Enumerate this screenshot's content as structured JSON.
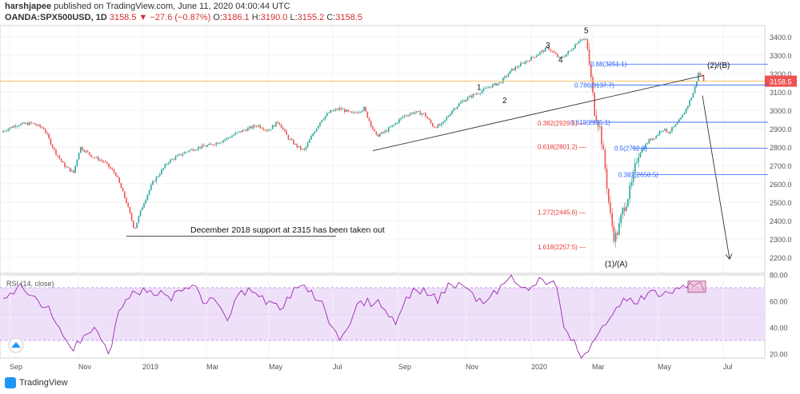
{
  "header": {
    "author": "harshjapee",
    "published": "published on TradingView.com, June 11, 2020 04:00:44 UTC",
    "symbol": "OANDA:SPX500USD, 1D",
    "last": "3158.5",
    "change": "−27.6 (−0.87%)",
    "o_label": "O:",
    "o_val": "3186.1",
    "h_label": "H:",
    "h_val": "3190.0",
    "l_label": "L:",
    "l_val": "3155.2",
    "c_label": "C:",
    "c_val": "3158.5"
  },
  "footer": {
    "brand": "TradingView"
  },
  "colors": {
    "up": "#26a69a",
    "down": "#ef5350",
    "fib_blue": "#2962ff",
    "fib_red": "#e53935",
    "rsi_line": "#9c27b0",
    "rsi_band": "#e9d5f7",
    "price_line": "#f5c26b"
  },
  "chart_data": [
    {
      "type": "candlestick",
      "symbol": "OANDA:SPX500USD",
      "timeframe": "1D",
      "x_ticks": [
        "Sep",
        "Nov",
        "2019",
        "Mar",
        "May",
        "Jul",
        "Sep",
        "Nov",
        "2020",
        "Mar",
        "May",
        "Jul"
      ],
      "y_ticks": [
        2200,
        2300,
        2400,
        2500,
        2600,
        2700,
        2800,
        2900,
        3000,
        3100,
        3200,
        3300,
        3400
      ],
      "ylim": [
        2150,
        3450
      ],
      "last_price_label": "3158.5",
      "series_close_approx": [
        [
          0,
          2880
        ],
        [
          20,
          2920
        ],
        [
          40,
          2930
        ],
        [
          55,
          2900
        ],
        [
          68,
          2780
        ],
        [
          80,
          2700
        ],
        [
          92,
          2660
        ],
        [
          100,
          2800
        ],
        [
          115,
          2750
        ],
        [
          130,
          2720
        ],
        [
          145,
          2650
        ],
        [
          158,
          2500
        ],
        [
          168,
          2350
        ],
        [
          178,
          2480
        ],
        [
          190,
          2600
        ],
        [
          200,
          2660
        ],
        [
          210,
          2720
        ],
        [
          222,
          2750
        ],
        [
          235,
          2780
        ],
        [
          250,
          2800
        ],
        [
          262,
          2810
        ],
        [
          275,
          2830
        ],
        [
          285,
          2850
        ],
        [
          298,
          2880
        ],
        [
          310,
          2900
        ],
        [
          322,
          2920
        ],
        [
          335,
          2890
        ],
        [
          348,
          2940
        ],
        [
          360,
          2850
        ],
        [
          372,
          2800
        ],
        [
          380,
          2780
        ],
        [
          392,
          2880
        ],
        [
          402,
          2950
        ],
        [
          412,
          2990
        ],
        [
          425,
          3010
        ],
        [
          440,
          2980
        ],
        [
          455,
          3010
        ],
        [
          463,
          2930
        ],
        [
          470,
          2860
        ],
        [
          480,
          2880
        ],
        [
          492,
          2920
        ],
        [
          505,
          2970
        ],
        [
          518,
          2990
        ],
        [
          530,
          2980
        ],
        [
          542,
          2910
        ],
        [
          552,
          2920
        ],
        [
          565,
          3000
        ],
        [
          578,
          3050
        ],
        [
          590,
          3080
        ],
        [
          600,
          3100
        ],
        [
          612,
          3130
        ],
        [
          625,
          3150
        ],
        [
          640,
          3220
        ],
        [
          655,
          3260
        ],
        [
          670,
          3300
        ],
        [
          685,
          3340
        ],
        [
          700,
          3280
        ],
        [
          712,
          3320
        ],
        [
          725,
          3390
        ],
        [
          733,
          3380
        ],
        [
          738,
          3200
        ],
        [
          743,
          3000
        ],
        [
          750,
          2900
        ],
        [
          756,
          2700
        ],
        [
          762,
          2450
        ],
        [
          768,
          2300
        ],
        [
          773,
          2350
        ],
        [
          778,
          2450
        ],
        [
          784,
          2520
        ],
        [
          790,
          2600
        ],
        [
          797,
          2760
        ],
        [
          805,
          2800
        ],
        [
          812,
          2840
        ],
        [
          820,
          2860
        ],
        [
          828,
          2900
        ],
        [
          836,
          2880
        ],
        [
          845,
          2920
        ],
        [
          852,
          2960
        ],
        [
          860,
          3030
        ],
        [
          867,
          3100
        ],
        [
          873,
          3200
        ],
        [
          877,
          3190
        ],
        [
          880,
          3158
        ]
      ],
      "annotations": [
        {
          "text": "December 2018 support at 2315 has been taken out"
        },
        {
          "text": "1"
        },
        {
          "text": "2"
        },
        {
          "text": "3"
        },
        {
          "text": "4"
        },
        {
          "text": "5"
        },
        {
          "text": "(1)/(A)"
        },
        {
          "text": "(2)/(B)"
        }
      ],
      "fib_levels": [
        {
          "label": "0.88(3251.1)",
          "price": 3251.1,
          "color": "blue"
        },
        {
          "label": "0.786(3137.7)",
          "price": 3137.7,
          "color": "blue"
        },
        {
          "label": "0.618(2935.1)",
          "price": 2935.1,
          "color": "blue"
        },
        {
          "label": "0.5(2792.8)",
          "price": 2792.8,
          "color": "blue"
        },
        {
          "label": "0.382(2650.5)",
          "price": 2650.5,
          "color": "blue"
        },
        {
          "label": "0.382(2929.5)",
          "price": 2929.5,
          "color": "red"
        },
        {
          "label": "0.618(2801.2)",
          "price": 2801.2,
          "color": "red"
        },
        {
          "label": "1.272(2445.6)",
          "price": 2445.6,
          "color": "red"
        },
        {
          "label": "1.618(2257.5)",
          "price": 2257.5,
          "color": "red"
        }
      ]
    },
    {
      "type": "line",
      "title": "RSI (14, close)",
      "ylim": [
        15,
        80
      ],
      "y_ticks": [
        20,
        40,
        60,
        80
      ],
      "y_tick_labels": [
        "20.00",
        "40.00",
        "60.00",
        "80.00"
      ],
      "band": [
        30,
        70
      ],
      "values": [
        62,
        66,
        70,
        68,
        64,
        60,
        55,
        48,
        40,
        30,
        22,
        28,
        35,
        40,
        30,
        20,
        42,
        55,
        62,
        66,
        70,
        68,
        64,
        65,
        60,
        68,
        70,
        72,
        66,
        58,
        62,
        55,
        45,
        60,
        68,
        70,
        66,
        64,
        60,
        58,
        55,
        62,
        70,
        72,
        68,
        60,
        52,
        40,
        30,
        38,
        50,
        60,
        62,
        58,
        55,
        48,
        42,
        55,
        62,
        68,
        70,
        64,
        58,
        66,
        72,
        74,
        70,
        66,
        62,
        60,
        68,
        72,
        76,
        74,
        70,
        68,
        72,
        76,
        74,
        70,
        40,
        30,
        22,
        20,
        28,
        36,
        42,
        50,
        56,
        60,
        58,
        64,
        66,
        68,
        64,
        66,
        70,
        72,
        74,
        73,
        68
      ]
    }
  ]
}
